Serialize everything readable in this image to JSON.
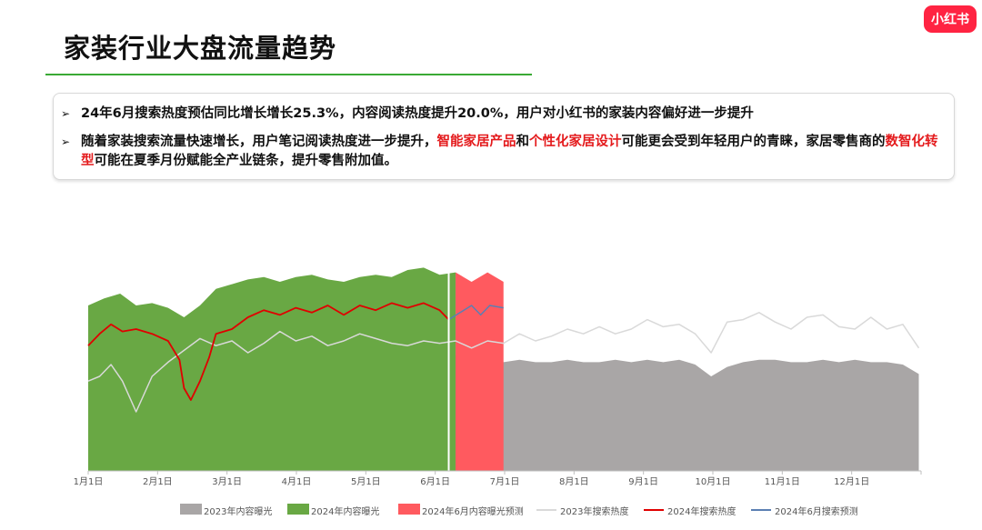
{
  "page": {
    "title": "家装行业大盘流量趋势",
    "logo_text": "小红书"
  },
  "summary": {
    "bullet1": "24年6月搜索热度预估同比增长增长25.3%，内容阅读热度提升20.0%，用户对小红书的家装内容偏好进一步提升",
    "bullet2_parts": [
      "随着家装搜索流量快速增长，用户笔记阅读热度进一步提升，",
      "智能家居产品",
      "和",
      "个性化家居设计",
      "可能更会受到年轻用户的青睐，家居零售商的",
      "数智化转型",
      "可能在夏季月份赋能全产业链条，提升零售附加值。"
    ]
  },
  "colors": {
    "exposure_2023": "#a9a6a6",
    "exposure_2024": "#69a844",
    "exposure_forecast": "#ff5a5f",
    "search_2023": "#d9d9d9",
    "search_2024": "#e00000",
    "search_forecast": "#5b7fb3",
    "highlight": "#e41a1c",
    "accent_rule": "#3aa935",
    "brand": "#ff2442"
  },
  "chart_data": {
    "type": "area",
    "title": "",
    "xlabel": "",
    "ylabel": "",
    "ylim": [
      0,
      100
    ],
    "x_ticks": [
      "1月1日",
      "2月1日",
      "3月1日",
      "4月1日",
      "5月1日",
      "6月1日",
      "7月1日",
      "8月1日",
      "9月1日",
      "10月1日",
      "11月1日",
      "12月1日"
    ],
    "x_range_days": [
      0,
      365
    ],
    "grid": false,
    "legend_position": "bottom",
    "series": [
      {
        "name": "2023年内容曝光",
        "kind": "area",
        "color": "#a9a6a6",
        "points": [
          [
            0,
            37
          ],
          [
            7,
            38
          ],
          [
            14,
            40
          ],
          [
            21,
            33
          ],
          [
            28,
            33
          ],
          [
            35,
            40
          ],
          [
            42,
            42
          ],
          [
            49,
            43
          ],
          [
            56,
            44
          ],
          [
            63,
            45
          ],
          [
            70,
            46
          ],
          [
            77,
            46
          ],
          [
            84,
            47
          ],
          [
            91,
            46
          ],
          [
            98,
            47
          ],
          [
            105,
            48
          ],
          [
            112,
            47
          ],
          [
            119,
            48
          ],
          [
            126,
            49
          ],
          [
            133,
            48
          ],
          [
            140,
            49
          ],
          [
            147,
            49
          ],
          [
            154,
            48
          ],
          [
            161,
            49
          ],
          [
            168,
            48
          ],
          [
            175,
            47
          ],
          [
            182,
            46
          ],
          [
            189,
            47
          ],
          [
            196,
            46
          ],
          [
            203,
            46
          ],
          [
            210,
            47
          ],
          [
            217,
            46
          ],
          [
            224,
            46
          ],
          [
            231,
            47
          ],
          [
            238,
            46
          ],
          [
            245,
            47
          ],
          [
            252,
            46
          ],
          [
            259,
            47
          ],
          [
            266,
            45
          ],
          [
            273,
            40
          ],
          [
            280,
            44
          ],
          [
            287,
            46
          ],
          [
            294,
            47
          ],
          [
            301,
            47
          ],
          [
            308,
            46
          ],
          [
            315,
            46
          ],
          [
            322,
            47
          ],
          [
            329,
            46
          ],
          [
            336,
            47
          ],
          [
            343,
            46
          ],
          [
            350,
            46
          ],
          [
            357,
            45
          ],
          [
            364,
            41
          ]
        ]
      },
      {
        "name": "2024年内容曝光",
        "kind": "area",
        "color": "#69a844",
        "points": [
          [
            0,
            70
          ],
          [
            7,
            73
          ],
          [
            14,
            75
          ],
          [
            21,
            70
          ],
          [
            28,
            71
          ],
          [
            35,
            69
          ],
          [
            42,
            65
          ],
          [
            49,
            70
          ],
          [
            56,
            77
          ],
          [
            63,
            79
          ],
          [
            70,
            81
          ],
          [
            77,
            82
          ],
          [
            84,
            80
          ],
          [
            91,
            82
          ],
          [
            98,
            83
          ],
          [
            105,
            81
          ],
          [
            112,
            80
          ],
          [
            119,
            82
          ],
          [
            126,
            83
          ],
          [
            133,
            82
          ],
          [
            140,
            85
          ],
          [
            147,
            86
          ],
          [
            154,
            83
          ],
          [
            161,
            84
          ]
        ]
      },
      {
        "name": "2024年6月内容曝光预测",
        "kind": "area",
        "color": "#ff5a5f",
        "points": [
          [
            161,
            84
          ],
          [
            168,
            80
          ],
          [
            175,
            84
          ],
          [
            182,
            80
          ],
          [
            182,
            0
          ]
        ]
      },
      {
        "name": "2023年搜索热度",
        "kind": "line",
        "color": "#d9d9d9",
        "points": [
          [
            0,
            38
          ],
          [
            5,
            40
          ],
          [
            10,
            45
          ],
          [
            15,
            38
          ],
          [
            21,
            25
          ],
          [
            28,
            40
          ],
          [
            35,
            46
          ],
          [
            42,
            51
          ],
          [
            49,
            56
          ],
          [
            56,
            53
          ],
          [
            63,
            55
          ],
          [
            70,
            50
          ],
          [
            77,
            54
          ],
          [
            84,
            59
          ],
          [
            91,
            55
          ],
          [
            98,
            57
          ],
          [
            105,
            53
          ],
          [
            112,
            55
          ],
          [
            119,
            58
          ],
          [
            126,
            56
          ],
          [
            133,
            54
          ],
          [
            140,
            53
          ],
          [
            147,
            55
          ],
          [
            154,
            54
          ],
          [
            161,
            55
          ],
          [
            168,
            52
          ],
          [
            175,
            55
          ],
          [
            182,
            54
          ],
          [
            189,
            58
          ],
          [
            196,
            55
          ],
          [
            203,
            57
          ],
          [
            210,
            60
          ],
          [
            217,
            58
          ],
          [
            224,
            61
          ],
          [
            231,
            58
          ],
          [
            238,
            60
          ],
          [
            245,
            64
          ],
          [
            252,
            61
          ],
          [
            259,
            62
          ],
          [
            266,
            58
          ],
          [
            273,
            50
          ],
          [
            280,
            63
          ],
          [
            287,
            64
          ],
          [
            294,
            67
          ],
          [
            301,
            63
          ],
          [
            308,
            60
          ],
          [
            315,
            65
          ],
          [
            322,
            66
          ],
          [
            329,
            61
          ],
          [
            336,
            60
          ],
          [
            343,
            65
          ],
          [
            350,
            60
          ],
          [
            357,
            62
          ],
          [
            364,
            52
          ]
        ]
      },
      {
        "name": "2024年搜索热度",
        "kind": "line",
        "color": "#e00000",
        "points": [
          [
            0,
            53
          ],
          [
            5,
            58
          ],
          [
            10,
            62
          ],
          [
            15,
            59
          ],
          [
            21,
            60
          ],
          [
            28,
            58
          ],
          [
            35,
            55
          ],
          [
            40,
            47
          ],
          [
            42,
            35
          ],
          [
            45,
            30
          ],
          [
            49,
            38
          ],
          [
            53,
            48
          ],
          [
            56,
            58
          ],
          [
            63,
            60
          ],
          [
            70,
            65
          ],
          [
            77,
            68
          ],
          [
            84,
            66
          ],
          [
            91,
            69
          ],
          [
            98,
            67
          ],
          [
            105,
            70
          ],
          [
            112,
            66
          ],
          [
            119,
            70
          ],
          [
            126,
            68
          ],
          [
            133,
            71
          ],
          [
            140,
            69
          ],
          [
            147,
            71
          ],
          [
            154,
            68
          ],
          [
            158,
            64
          ]
        ]
      },
      {
        "name": "2024年6月搜索预测",
        "kind": "line",
        "color": "#5b7fb3",
        "points": [
          [
            158,
            64
          ],
          [
            163,
            67
          ],
          [
            168,
            70
          ],
          [
            172,
            66
          ],
          [
            176,
            70
          ],
          [
            182,
            69
          ]
        ]
      }
    ],
    "forecast_divider_day": 158
  }
}
